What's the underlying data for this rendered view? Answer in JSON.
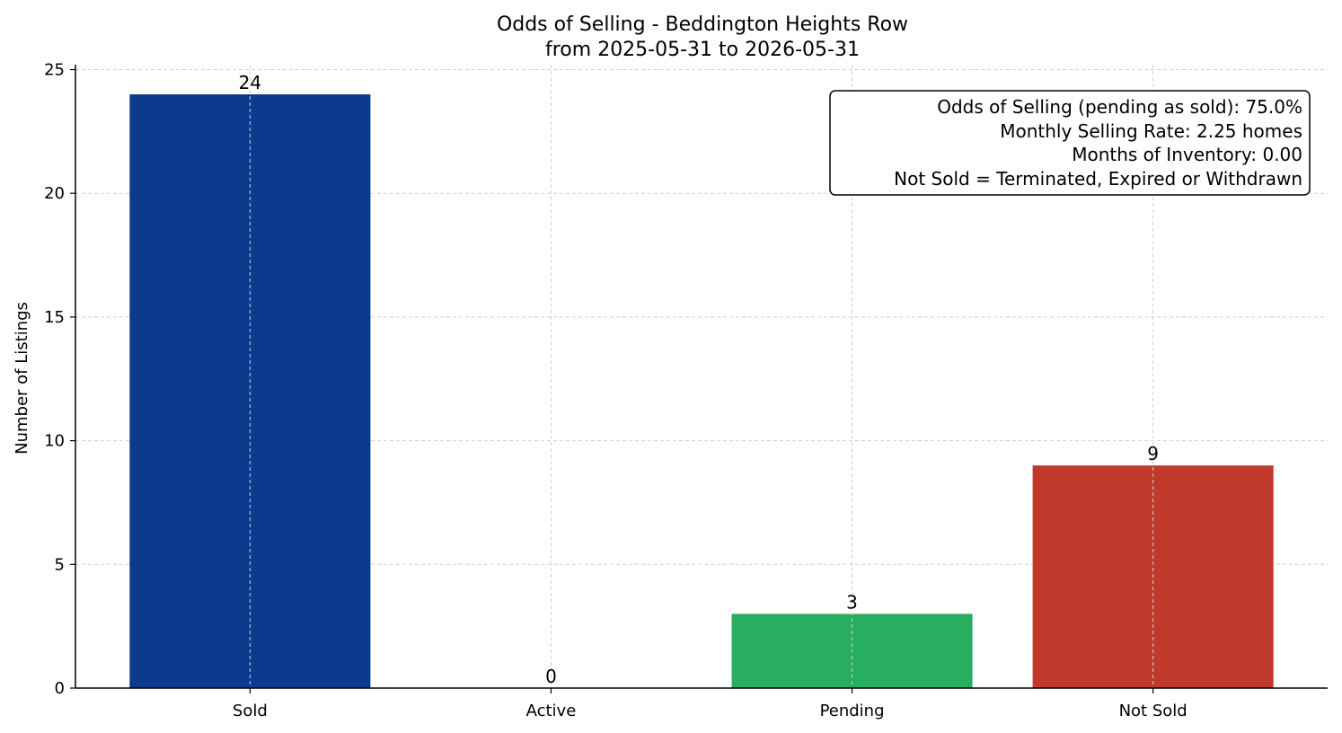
{
  "chart_data": {
    "type": "bar",
    "title": "Odds of Selling - Beddington Heights Row",
    "subtitle": "from 2025-05-31 to 2026-05-31",
    "xlabel": "",
    "ylabel": "Number of Listings",
    "categories": [
      "Sold",
      "Active",
      "Pending",
      "Not Sold"
    ],
    "values": [
      24,
      0,
      3,
      9
    ],
    "colors": [
      "#0b3a8e",
      "#27ae60",
      "#27ae60",
      "#c0392b"
    ],
    "ylim": [
      0,
      25.2
    ],
    "yticks": [
      0,
      5,
      10,
      15,
      20,
      25
    ],
    "grid": true,
    "info_box": {
      "placement": "top-right",
      "lines": [
        "Odds of Selling (pending as sold): 75.0%",
        "Monthly Selling Rate: 2.25 homes",
        "Months of Inventory: 0.00",
        "Not Sold = Terminated, Expired or Withdrawn"
      ]
    }
  }
}
